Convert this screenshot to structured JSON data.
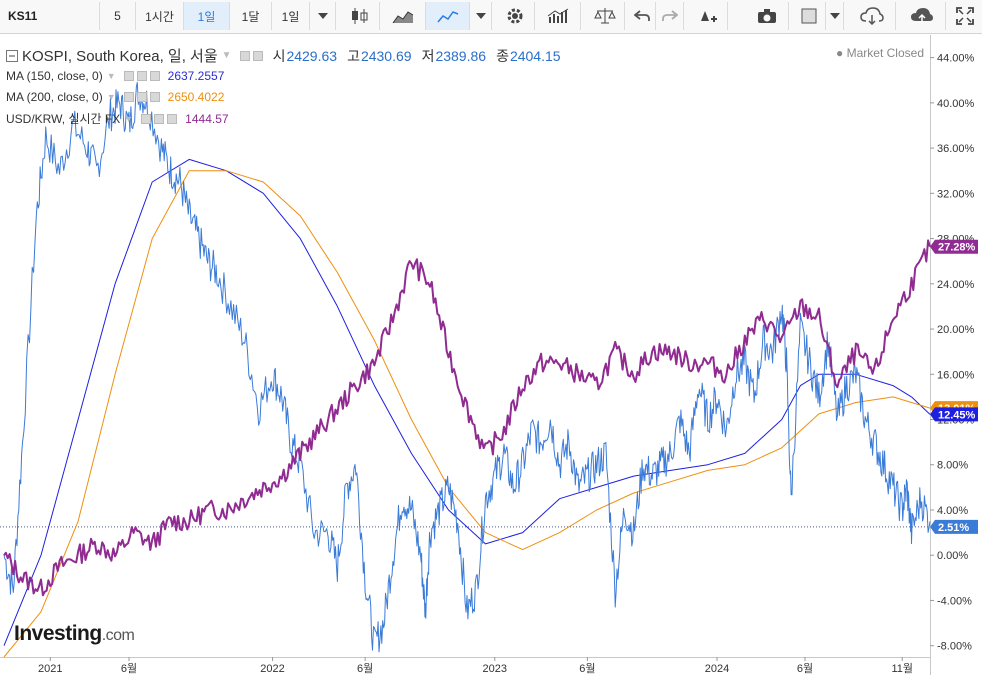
{
  "toolbar": {
    "symbol": "KS11",
    "intervals": [
      "5",
      "1시간",
      "1일",
      "1달",
      "1일"
    ],
    "active_interval": "1일",
    "icons": [
      "chevron-down-icon",
      "candlestick-icon",
      "area-chart-icon",
      "line-chart-icon",
      "chevron-down-icon",
      "settings-icon",
      "indicators-icon",
      "compare-icon",
      "undo-icon",
      "redo-icon",
      "drawing-tool-icon",
      "camera-icon",
      "square-icon",
      "chevron-down-icon",
      "cloud-download-icon",
      "cloud-upload-icon",
      "fullscreen-icon"
    ]
  },
  "legend": {
    "main": {
      "name": "KOSPI, South Korea, 일, 서울",
      "o_label": "시",
      "o": "2429.63",
      "h_label": "고",
      "h": "2430.69",
      "l_label": "저",
      "l": "2389.86",
      "c_label": "종",
      "c": "2404.15"
    },
    "ma150": {
      "name": "MA (150, close, 0)",
      "value": "2637.2557",
      "color": "#2b2bd6"
    },
    "ma200": {
      "name": "MA (200, close, 0)",
      "value": "2650.4022",
      "color": "#ee8f10"
    },
    "usdkrw": {
      "name": "USD/KRW, 실시간 FX",
      "value": "1444.57",
      "color": "#8f2b91"
    }
  },
  "status": {
    "market": "Market Closed"
  },
  "watermark": {
    "brand": "Investing",
    "suffix": ".com"
  },
  "chart_data": {
    "type": "line",
    "x_ticks": [
      "2021",
      "6월",
      "2022",
      "6월",
      "2023",
      "6월",
      "2024",
      "6월",
      "11월"
    ],
    "x_range": [
      "2021-01",
      "2024-11"
    ],
    "y_ticks": [
      "44.00%",
      "40.00%",
      "36.00%",
      "32.00%",
      "28.00%",
      "24.00%",
      "20.00%",
      "16.00%",
      "12.00%",
      "8.00%",
      "4.00%",
      "0.00%",
      "-4.00%",
      "-8.00%"
    ],
    "ylim": [
      -9,
      46
    ],
    "y_unit": "%",
    "reference_line": 2.51,
    "badges": [
      {
        "label": "27.28%",
        "value": 27.28,
        "color": "#8f2b91"
      },
      {
        "label": "13.01%",
        "value": 13.01,
        "color": "#ee8f10"
      },
      {
        "label": "12.45%",
        "value": 12.45,
        "color": "#1f1fe0"
      },
      {
        "label": "2.51%",
        "value": 2.51,
        "color": "#3b7bd8"
      }
    ],
    "series": [
      {
        "name": "KOSPI, South Korea, 일, 서울",
        "color": "#3b7bd8",
        "width": 1,
        "x": [
          0,
          0.01,
          0.02,
          0.035,
          0.045,
          0.06,
          0.075,
          0.09,
          0.1,
          0.115,
          0.125,
          0.135,
          0.145,
          0.155,
          0.17,
          0.18,
          0.19,
          0.2,
          0.21,
          0.22,
          0.23,
          0.245,
          0.26,
          0.275,
          0.29,
          0.3,
          0.31,
          0.32,
          0.335,
          0.35,
          0.36,
          0.37,
          0.38,
          0.39,
          0.4,
          0.41,
          0.42,
          0.43,
          0.44,
          0.45,
          0.455,
          0.46,
          0.47,
          0.48,
          0.49,
          0.5,
          0.51,
          0.52,
          0.53,
          0.54,
          0.55,
          0.56,
          0.57,
          0.58,
          0.59,
          0.6,
          0.61,
          0.62,
          0.63,
          0.64,
          0.65,
          0.66,
          0.67,
          0.68,
          0.69,
          0.7,
          0.71,
          0.72,
          0.73,
          0.74,
          0.75,
          0.76,
          0.77,
          0.78,
          0.79,
          0.8,
          0.81,
          0.82,
          0.83,
          0.84,
          0.845,
          0.85,
          0.86,
          0.87,
          0.88,
          0.89,
          0.9,
          0.91,
          0.92,
          0.93,
          0.94,
          0.95,
          0.96,
          0.97,
          0.975,
          0.98,
          0.99,
          1.0
        ],
        "y": [
          0,
          -3,
          10,
          30,
          37,
          34,
          38,
          36,
          34,
          39,
          40,
          38,
          41,
          40,
          36,
          34,
          33,
          30,
          28,
          26,
          25,
          22,
          19,
          13,
          16,
          14,
          10,
          8,
          2,
          2,
          -1,
          6,
          8,
          -2,
          -8,
          -6,
          0,
          5,
          4,
          0,
          -5,
          2,
          4,
          6,
          3,
          -5,
          -3,
          5,
          7,
          9,
          6,
          8,
          11,
          10,
          12,
          8,
          10,
          6,
          7,
          8,
          9,
          -3,
          4,
          2,
          8,
          7,
          8,
          9,
          12,
          9,
          15,
          12,
          14,
          11,
          16,
          17,
          14,
          19,
          18,
          22,
          17,
          5,
          20,
          17,
          14,
          19,
          12,
          15,
          16,
          12,
          10,
          8,
          6,
          4,
          6,
          2,
          5,
          3
        ]
      },
      {
        "name": "MA (150, close, 0)",
        "color": "#1f1fe0",
        "width": 1,
        "x": [
          0,
          0.04,
          0.08,
          0.12,
          0.16,
          0.2,
          0.24,
          0.28,
          0.32,
          0.36,
          0.4,
          0.44,
          0.48,
          0.52,
          0.56,
          0.6,
          0.64,
          0.68,
          0.72,
          0.76,
          0.8,
          0.84,
          0.86,
          0.88,
          0.92,
          0.96,
          0.98,
          1.0
        ],
        "y": [
          -8,
          0,
          12,
          24,
          33,
          35,
          34,
          32,
          28,
          22,
          15,
          9,
          4,
          1,
          2,
          5,
          6,
          7,
          7.5,
          8,
          9,
          12,
          15,
          16,
          16,
          15,
          14,
          12.45
        ]
      },
      {
        "name": "MA (200, close, 0)",
        "color": "#ee8f10",
        "width": 1,
        "x": [
          0,
          0.04,
          0.08,
          0.12,
          0.16,
          0.2,
          0.24,
          0.28,
          0.32,
          0.36,
          0.4,
          0.44,
          0.48,
          0.52,
          0.56,
          0.6,
          0.64,
          0.68,
          0.72,
          0.76,
          0.8,
          0.84,
          0.86,
          0.88,
          0.92,
          0.96,
          0.98,
          1.0
        ],
        "y": [
          -9,
          -5,
          3,
          16,
          28,
          34,
          34,
          33,
          30,
          25,
          19,
          12,
          6,
          2,
          0.5,
          2,
          4,
          5.5,
          6.5,
          7.5,
          8,
          9.5,
          11,
          12.5,
          13.5,
          14,
          13.5,
          13.01
        ]
      },
      {
        "name": "USD/KRW, 실시간 FX",
        "color": "#8f2b91",
        "width": 2,
        "x": [
          0,
          0.02,
          0.04,
          0.06,
          0.08,
          0.1,
          0.12,
          0.14,
          0.16,
          0.18,
          0.2,
          0.22,
          0.24,
          0.26,
          0.28,
          0.3,
          0.32,
          0.34,
          0.36,
          0.38,
          0.4,
          0.42,
          0.44,
          0.46,
          0.48,
          0.5,
          0.52,
          0.54,
          0.56,
          0.58,
          0.6,
          0.62,
          0.64,
          0.66,
          0.68,
          0.7,
          0.72,
          0.74,
          0.76,
          0.78,
          0.8,
          0.82,
          0.84,
          0.86,
          0.88,
          0.9,
          0.92,
          0.94,
          0.96,
          0.98,
          1.0
        ],
        "y": [
          0,
          -2,
          -3,
          -1,
          0,
          1,
          0,
          2,
          1,
          3,
          3,
          4,
          4,
          5,
          6,
          7,
          9,
          11,
          13,
          15,
          17,
          21,
          26,
          24,
          18,
          13,
          9,
          11,
          15,
          17,
          17,
          16,
          15,
          18,
          16,
          18,
          18,
          17,
          17,
          16,
          19,
          21,
          19,
          22,
          21,
          15,
          18,
          16,
          21,
          24,
          27.28
        ]
      }
    ]
  }
}
